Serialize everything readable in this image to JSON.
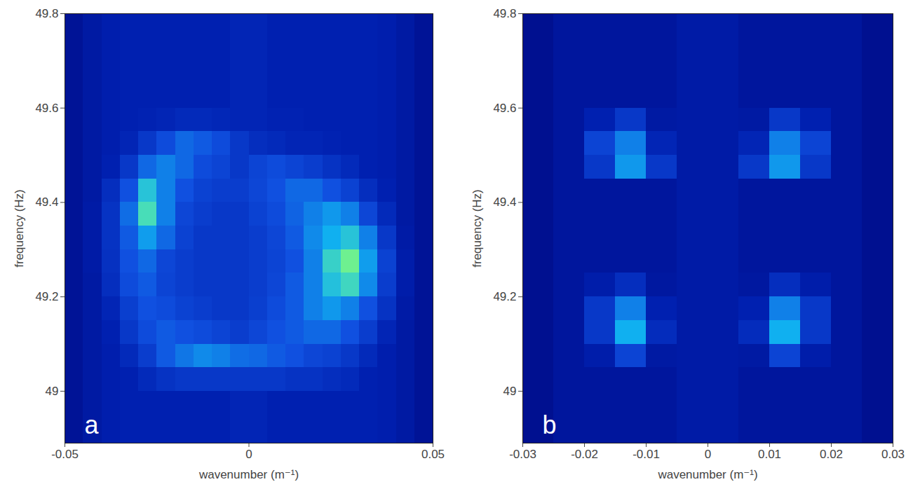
{
  "chart_data": [
    {
      "type": "heatmap",
      "panel_label": "a",
      "xlabel": "wavenumber (m⁻¹)",
      "ylabel": "frequency (Hz)",
      "xlim": [
        -0.05,
        0.05
      ],
      "xticks": [
        -0.05,
        0,
        0.05
      ],
      "ylim": [
        48.89,
        49.8
      ],
      "yticks": [
        49,
        49.2,
        49.4,
        49.6,
        49.8
      ],
      "zlim": [
        0,
        1
      ],
      "x_edges": [
        -0.05,
        -0.045,
        -0.04,
        -0.035,
        -0.03,
        -0.025,
        -0.02,
        -0.015,
        -0.01,
        -0.005,
        0,
        0.005,
        0.01,
        0.015,
        0.02,
        0.025,
        0.03,
        0.035,
        0.04,
        0.045,
        0.05
      ],
      "y_edges": [
        48.89,
        48.95,
        49,
        49.05,
        49.1,
        49.15,
        49.2,
        49.25,
        49.3,
        49.35,
        49.4,
        49.45,
        49.5,
        49.55,
        49.6,
        49.65,
        49.7,
        49.75,
        49.8
      ],
      "cells": [
        [
          0.12,
          0.16,
          0.19,
          0.2,
          0.2,
          0.2,
          0.2,
          0.2,
          0.2,
          0.22,
          0.22,
          0.2,
          0.2,
          0.2,
          0.2,
          0.2,
          0.2,
          0.19,
          0.16,
          0.12
        ],
        [
          0.12,
          0.16,
          0.19,
          0.2,
          0.2,
          0.2,
          0.2,
          0.2,
          0.2,
          0.22,
          0.22,
          0.2,
          0.2,
          0.2,
          0.2,
          0.2,
          0.2,
          0.19,
          0.16,
          0.12
        ],
        [
          0.12,
          0.16,
          0.19,
          0.2,
          0.24,
          0.28,
          0.3,
          0.3,
          0.3,
          0.3,
          0.3,
          0.3,
          0.28,
          0.28,
          0.26,
          0.24,
          0.2,
          0.19,
          0.16,
          0.12
        ],
        [
          0.12,
          0.16,
          0.19,
          0.24,
          0.32,
          0.42,
          0.48,
          0.52,
          0.5,
          0.46,
          0.45,
          0.42,
          0.4,
          0.36,
          0.34,
          0.3,
          0.24,
          0.19,
          0.16,
          0.12
        ],
        [
          0.12,
          0.16,
          0.2,
          0.3,
          0.38,
          0.42,
          0.4,
          0.38,
          0.35,
          0.32,
          0.36,
          0.4,
          0.42,
          0.45,
          0.45,
          0.4,
          0.32,
          0.22,
          0.16,
          0.12
        ],
        [
          0.12,
          0.16,
          0.22,
          0.33,
          0.4,
          0.38,
          0.34,
          0.32,
          0.3,
          0.3,
          0.33,
          0.38,
          0.42,
          0.5,
          0.55,
          0.5,
          0.4,
          0.28,
          0.17,
          0.12
        ],
        [
          0.12,
          0.16,
          0.26,
          0.38,
          0.42,
          0.35,
          0.32,
          0.3,
          0.3,
          0.3,
          0.32,
          0.36,
          0.42,
          0.5,
          0.65,
          0.72,
          0.52,
          0.32,
          0.18,
          0.12
        ],
        [
          0.12,
          0.17,
          0.27,
          0.4,
          0.45,
          0.36,
          0.32,
          0.3,
          0.3,
          0.3,
          0.32,
          0.35,
          0.4,
          0.5,
          0.7,
          0.82,
          0.56,
          0.34,
          0.18,
          0.12
        ],
        [
          0.12,
          0.17,
          0.28,
          0.42,
          0.56,
          0.45,
          0.34,
          0.3,
          0.3,
          0.3,
          0.32,
          0.36,
          0.42,
          0.52,
          0.6,
          0.66,
          0.5,
          0.3,
          0.17,
          0.12
        ],
        [
          0.12,
          0.17,
          0.28,
          0.46,
          0.74,
          0.5,
          0.36,
          0.32,
          0.3,
          0.3,
          0.34,
          0.38,
          0.44,
          0.5,
          0.55,
          0.5,
          0.36,
          0.24,
          0.16,
          0.12
        ],
        [
          0.12,
          0.16,
          0.26,
          0.4,
          0.66,
          0.5,
          0.4,
          0.34,
          0.32,
          0.32,
          0.36,
          0.4,
          0.45,
          0.45,
          0.4,
          0.34,
          0.26,
          0.2,
          0.16,
          0.12
        ],
        [
          0.12,
          0.16,
          0.2,
          0.3,
          0.45,
          0.5,
          0.45,
          0.38,
          0.35,
          0.3,
          0.35,
          0.38,
          0.35,
          0.32,
          0.28,
          0.24,
          0.2,
          0.19,
          0.16,
          0.12
        ],
        [
          0.12,
          0.16,
          0.19,
          0.22,
          0.3,
          0.38,
          0.45,
          0.42,
          0.38,
          0.3,
          0.26,
          0.24,
          0.22,
          0.22,
          0.21,
          0.2,
          0.2,
          0.19,
          0.16,
          0.12
        ],
        [
          0.12,
          0.16,
          0.19,
          0.2,
          0.21,
          0.22,
          0.24,
          0.24,
          0.23,
          0.22,
          0.22,
          0.21,
          0.21,
          0.2,
          0.2,
          0.2,
          0.2,
          0.19,
          0.16,
          0.12
        ],
        [
          0.12,
          0.16,
          0.19,
          0.2,
          0.2,
          0.2,
          0.2,
          0.2,
          0.2,
          0.22,
          0.22,
          0.2,
          0.2,
          0.2,
          0.2,
          0.2,
          0.2,
          0.19,
          0.16,
          0.12
        ],
        [
          0.12,
          0.16,
          0.19,
          0.2,
          0.2,
          0.2,
          0.2,
          0.2,
          0.2,
          0.22,
          0.22,
          0.2,
          0.2,
          0.2,
          0.2,
          0.2,
          0.2,
          0.19,
          0.16,
          0.12
        ],
        [
          0.12,
          0.16,
          0.19,
          0.2,
          0.2,
          0.2,
          0.2,
          0.2,
          0.2,
          0.22,
          0.22,
          0.2,
          0.2,
          0.2,
          0.2,
          0.2,
          0.2,
          0.19,
          0.16,
          0.12
        ],
        [
          0.12,
          0.16,
          0.19,
          0.2,
          0.2,
          0.2,
          0.2,
          0.2,
          0.2,
          0.22,
          0.22,
          0.2,
          0.2,
          0.2,
          0.2,
          0.2,
          0.2,
          0.19,
          0.16,
          0.12
        ]
      ]
    },
    {
      "type": "heatmap",
      "panel_label": "b",
      "xlabel": "wavenumber (m⁻¹)",
      "ylabel": "frequency (Hz)",
      "xlim": [
        -0.03,
        0.03
      ],
      "xticks": [
        -0.03,
        -0.02,
        -0.01,
        0,
        0.01,
        0.02,
        0.03
      ],
      "ylim": [
        48.89,
        49.8
      ],
      "yticks": [
        49,
        49.2,
        49.4,
        49.6,
        49.8
      ],
      "zlim": [
        0,
        1
      ],
      "x_edges": [
        -0.03,
        -0.025,
        -0.02,
        -0.015,
        -0.01,
        -0.005,
        0,
        0.005,
        0.01,
        0.015,
        0.02,
        0.025,
        0.03
      ],
      "y_edges": [
        48.89,
        48.95,
        49,
        49.05,
        49.1,
        49.15,
        49.2,
        49.25,
        49.3,
        49.35,
        49.4,
        49.45,
        49.5,
        49.55,
        49.6,
        49.65,
        49.7,
        49.75,
        49.8
      ],
      "cells": [
        [
          0.1,
          0.14,
          0.14,
          0.14,
          0.14,
          0.17,
          0.17,
          0.14,
          0.14,
          0.14,
          0.14,
          0.1
        ],
        [
          0.1,
          0.14,
          0.14,
          0.14,
          0.14,
          0.17,
          0.17,
          0.14,
          0.14,
          0.14,
          0.14,
          0.1
        ],
        [
          0.1,
          0.14,
          0.14,
          0.14,
          0.14,
          0.17,
          0.17,
          0.14,
          0.14,
          0.14,
          0.14,
          0.1
        ],
        [
          0.1,
          0.14,
          0.18,
          0.35,
          0.16,
          0.17,
          0.17,
          0.16,
          0.35,
          0.18,
          0.14,
          0.1
        ],
        [
          0.1,
          0.14,
          0.3,
          0.6,
          0.25,
          0.17,
          0.17,
          0.25,
          0.6,
          0.3,
          0.14,
          0.1
        ],
        [
          0.1,
          0.14,
          0.3,
          0.5,
          0.2,
          0.17,
          0.17,
          0.2,
          0.5,
          0.3,
          0.14,
          0.1
        ],
        [
          0.1,
          0.14,
          0.18,
          0.26,
          0.15,
          0.17,
          0.17,
          0.15,
          0.26,
          0.18,
          0.14,
          0.1
        ],
        [
          0.1,
          0.14,
          0.14,
          0.14,
          0.14,
          0.17,
          0.17,
          0.14,
          0.14,
          0.14,
          0.14,
          0.1
        ],
        [
          0.1,
          0.14,
          0.14,
          0.14,
          0.14,
          0.17,
          0.17,
          0.14,
          0.14,
          0.14,
          0.14,
          0.1
        ],
        [
          0.1,
          0.14,
          0.14,
          0.14,
          0.14,
          0.17,
          0.17,
          0.14,
          0.14,
          0.14,
          0.14,
          0.1
        ],
        [
          0.1,
          0.14,
          0.14,
          0.14,
          0.14,
          0.17,
          0.17,
          0.14,
          0.14,
          0.14,
          0.14,
          0.1
        ],
        [
          0.1,
          0.14,
          0.3,
          0.55,
          0.3,
          0.17,
          0.17,
          0.3,
          0.55,
          0.3,
          0.14,
          0.1
        ],
        [
          0.1,
          0.14,
          0.35,
          0.5,
          0.22,
          0.17,
          0.17,
          0.22,
          0.5,
          0.35,
          0.14,
          0.1
        ],
        [
          0.1,
          0.14,
          0.2,
          0.3,
          0.16,
          0.17,
          0.17,
          0.16,
          0.3,
          0.2,
          0.14,
          0.1
        ],
        [
          0.1,
          0.14,
          0.14,
          0.14,
          0.14,
          0.17,
          0.17,
          0.14,
          0.14,
          0.14,
          0.14,
          0.1
        ],
        [
          0.1,
          0.14,
          0.14,
          0.14,
          0.14,
          0.17,
          0.17,
          0.14,
          0.14,
          0.14,
          0.14,
          0.1
        ],
        [
          0.1,
          0.14,
          0.14,
          0.14,
          0.14,
          0.17,
          0.17,
          0.14,
          0.14,
          0.14,
          0.14,
          0.1
        ],
        [
          0.1,
          0.14,
          0.14,
          0.14,
          0.14,
          0.17,
          0.17,
          0.14,
          0.14,
          0.14,
          0.14,
          0.1
        ]
      ]
    }
  ]
}
